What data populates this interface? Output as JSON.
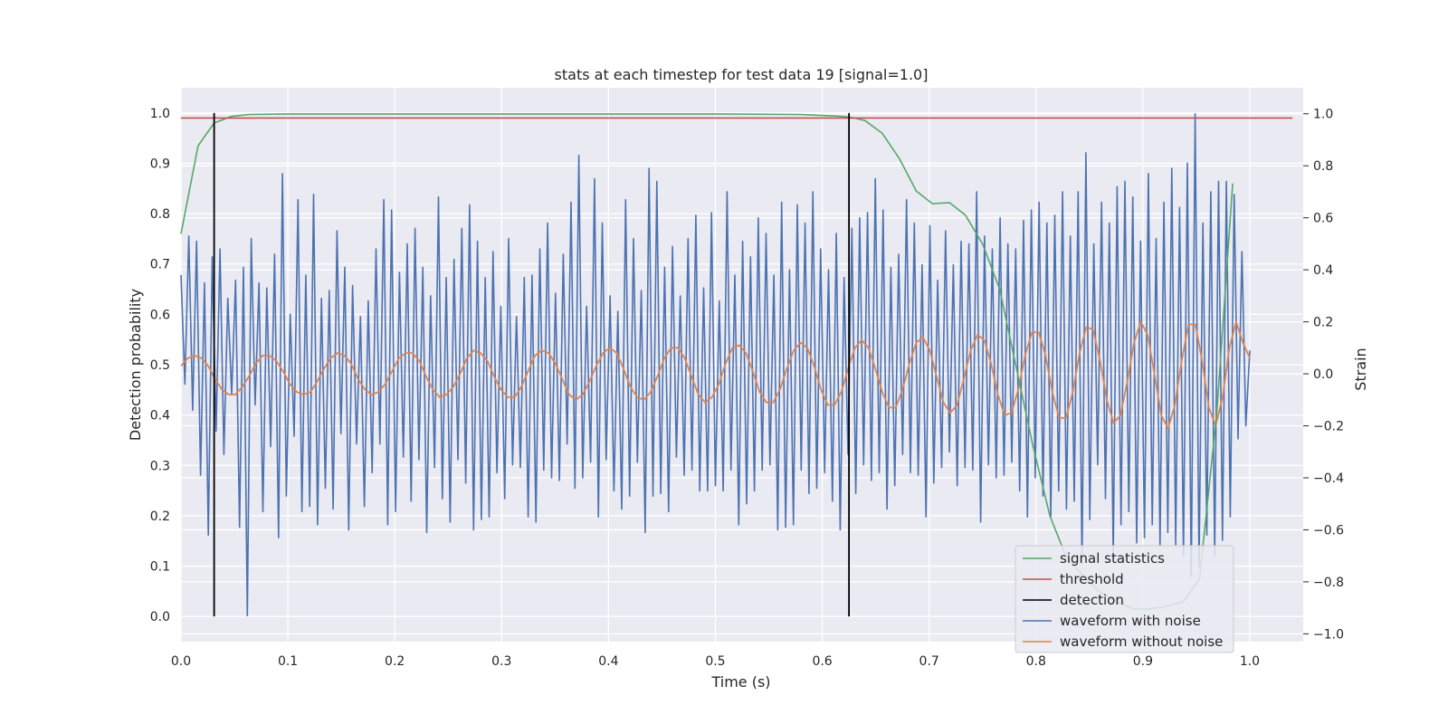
{
  "chart_data": {
    "type": "line",
    "title": "stats at each timestep for test data 19 [signal=1.0]",
    "xlabel": "Time (s)",
    "ylabel": "Detection probability",
    "y2label": "Strain",
    "xlim": [
      0.0,
      1.05
    ],
    "ylim": [
      -0.05,
      1.05
    ],
    "y2lim": [
      -1.03,
      1.1
    ],
    "xticks": [
      "0.0",
      "0.1",
      "0.2",
      "0.3",
      "0.4",
      "0.5",
      "0.6",
      "0.7",
      "0.8",
      "0.9",
      "1.0"
    ],
    "yticks": [
      "0.0",
      "0.1",
      "0.2",
      "0.3",
      "0.4",
      "0.5",
      "0.6",
      "0.7",
      "0.8",
      "0.9",
      "1.0"
    ],
    "y2ticks": [
      "−1.0",
      "−0.8",
      "−0.6",
      "−0.4",
      "−0.2",
      "0.0",
      "0.2",
      "0.4",
      "0.6",
      "0.8",
      "1.0"
    ],
    "grid": true,
    "legend_position": "lower-right",
    "colors": {
      "background": "#eaeaf2",
      "grid": "#ffffff",
      "signal": "#55a868",
      "threshold": "#c44e52",
      "detection": "#000000",
      "noisy": "#4c72b0",
      "clean": "#dd8452"
    },
    "series": [
      {
        "name": "signal statistics",
        "axis": "left",
        "x": [
          0.0,
          0.016,
          0.031,
          0.047,
          0.063,
          0.1,
          0.2,
          0.3,
          0.4,
          0.5,
          0.58,
          0.62,
          0.63,
          0.64,
          0.656,
          0.672,
          0.688,
          0.703,
          0.719,
          0.734,
          0.75,
          0.766,
          0.781,
          0.797,
          0.813,
          0.828,
          0.844,
          0.859,
          0.875,
          0.891,
          0.906,
          0.922,
          0.938,
          0.953,
          0.969,
          0.984
        ],
        "values": [
          0.76,
          0.935,
          0.98,
          0.993,
          0.997,
          0.998,
          0.998,
          0.998,
          0.998,
          0.998,
          0.997,
          0.993,
          0.99,
          0.985,
          0.96,
          0.91,
          0.845,
          0.82,
          0.822,
          0.797,
          0.74,
          0.65,
          0.5,
          0.34,
          0.2,
          0.12,
          0.08,
          0.05,
          0.03,
          0.015,
          0.015,
          0.02,
          0.03,
          0.075,
          0.4,
          0.86
        ]
      },
      {
        "name": "threshold",
        "axis": "left",
        "x": [
          0.0,
          1.04
        ],
        "values": [
          0.99,
          0.99
        ]
      },
      {
        "name": "detection",
        "axis": "left",
        "segments": [
          {
            "x": 0.031,
            "from": 0.0,
            "to": 1.0
          },
          {
            "x": 0.625,
            "from": 0.0,
            "to": 1.0
          }
        ]
      },
      {
        "name": "waveform with noise",
        "axis": "right",
        "x_range": [
          0.0,
          1.0
        ],
        "values": [
          0.38,
          -0.04,
          0.53,
          -0.14,
          0.51,
          -0.39,
          0.35,
          -0.62,
          0.45,
          -0.22,
          0.48,
          -0.31,
          0.29,
          -0.08,
          0.36,
          -0.59,
          0.41,
          -0.93,
          0.52,
          -0.12,
          0.35,
          -0.53,
          0.33,
          -0.28,
          0.46,
          -0.63,
          0.77,
          -0.47,
          0.23,
          -0.24,
          0.67,
          -0.53,
          0.38,
          -0.51,
          0.69,
          -0.58,
          0.29,
          -0.44,
          0.32,
          -0.52,
          0.55,
          -0.23,
          0.41,
          -0.6,
          0.34,
          -0.27,
          0.22,
          -0.51,
          0.28,
          -0.38,
          0.48,
          -0.27,
          0.67,
          -0.58,
          0.63,
          -0.53,
          0.39,
          -0.32,
          0.5,
          -0.49,
          0.56,
          -0.33,
          0.41,
          -0.61,
          0.3,
          -0.36,
          0.68,
          -0.48,
          0.37,
          -0.57,
          0.44,
          -0.33,
          0.56,
          -0.42,
          0.65,
          -0.6,
          0.51,
          -0.56,
          0.37,
          -0.55,
          0.47,
          -0.38,
          0.26,
          -0.48,
          0.52,
          -0.35,
          0.22,
          -0.36,
          0.37,
          -0.55,
          0.38,
          -0.57,
          0.48,
          -0.37,
          0.58,
          -0.4,
          0.31,
          -0.41,
          0.46,
          -0.27,
          0.66,
          -0.44,
          0.84,
          -0.4,
          0.26,
          -0.34,
          0.75,
          -0.55,
          0.58,
          -0.33,
          0.3,
          -0.45,
          0.24,
          -0.52,
          0.67,
          -0.47,
          0.52,
          -0.34,
          0.32,
          -0.61,
          0.79,
          -0.47,
          0.74,
          -0.46,
          0.41,
          -0.53,
          0.49,
          -0.32,
          0.3,
          -0.39,
          0.52,
          -0.37,
          0.61,
          -0.45,
          0.33,
          -0.45,
          0.62,
          -0.43,
          0.28,
          -0.45,
          0.7,
          -0.37,
          0.38,
          -0.58,
          0.51,
          -0.5,
          0.45,
          -0.45,
          0.6,
          -0.37,
          0.54,
          -0.35,
          0.38,
          -0.6,
          0.66,
          -0.59,
          0.4,
          -0.58,
          0.65,
          -0.37,
          0.58,
          -0.46,
          0.7,
          -0.44,
          0.48,
          -0.38,
          0.4,
          -0.49,
          0.54,
          -0.6,
          0.37,
          -0.31,
          0.56,
          -0.46,
          0.6,
          -0.35,
          0.62,
          -0.41,
          0.75,
          -0.38,
          0.63,
          -0.52,
          0.41,
          -0.43,
          0.46,
          -0.31,
          0.67,
          -0.38,
          0.58,
          -0.39,
          0.42,
          -0.55,
          0.57,
          -0.42,
          0.36,
          -0.36,
          0.55,
          -0.3,
          0.42,
          -0.43,
          0.51,
          -0.36,
          0.5,
          -0.37,
          0.7,
          -0.57,
          0.53,
          -0.35,
          0.48,
          -0.4,
          0.6,
          -0.39,
          0.5,
          -0.34,
          0.48,
          -0.45,
          0.59,
          -0.55,
          0.63,
          -0.4,
          0.66,
          -0.47,
          0.58,
          -0.55,
          0.61,
          -0.45,
          0.7,
          -0.52,
          0.53,
          -0.49,
          0.7,
          -0.73,
          0.85,
          -0.56,
          0.5,
          -0.35,
          0.66,
          -0.48,
          0.58,
          -0.7,
          0.72,
          -0.58,
          0.74,
          -0.53,
          0.68,
          -0.65,
          0.51,
          -0.63,
          0.77,
          -0.58,
          0.52,
          -0.66,
          0.66,
          -0.61,
          0.79,
          -0.66,
          0.64,
          -0.7,
          0.81,
          -0.78,
          1.0,
          -0.74,
          0.58,
          -0.62,
          0.7,
          -0.7,
          0.74,
          -0.64,
          0.74,
          -0.55,
          0.69,
          -0.25,
          0.47,
          -0.2,
          0.09
        ]
      },
      {
        "name": "waveform without noise",
        "axis": "right",
        "x_range": [
          0.0,
          1.0
        ],
        "values": [
          0.03,
          0.06,
          0.07,
          0.06,
          0.03,
          -0.02,
          -0.06,
          -0.08,
          -0.08,
          -0.05,
          -0.01,
          0.04,
          0.07,
          0.07,
          0.05,
          0.01,
          -0.04,
          -0.07,
          -0.08,
          -0.07,
          -0.03,
          0.02,
          0.06,
          0.08,
          0.07,
          0.04,
          -0.02,
          -0.06,
          -0.08,
          -0.07,
          -0.04,
          0.01,
          0.06,
          0.08,
          0.08,
          0.05,
          -0.01,
          -0.06,
          -0.09,
          -0.08,
          -0.05,
          0.0,
          0.06,
          0.09,
          0.08,
          0.05,
          -0.01,
          -0.06,
          -0.09,
          -0.09,
          -0.05,
          0.01,
          0.07,
          0.09,
          0.08,
          0.04,
          -0.02,
          -0.08,
          -0.1,
          -0.08,
          -0.03,
          0.03,
          0.08,
          0.1,
          0.08,
          0.02,
          -0.05,
          -0.09,
          -0.1,
          -0.07,
          -0.01,
          0.06,
          0.1,
          0.1,
          0.06,
          -0.01,
          -0.08,
          -0.11,
          -0.09,
          -0.04,
          0.04,
          0.1,
          0.11,
          0.08,
          0.01,
          -0.07,
          -0.11,
          -0.11,
          -0.06,
          0.02,
          0.09,
          0.12,
          0.1,
          0.03,
          -0.06,
          -0.12,
          -0.12,
          -0.07,
          0.02,
          0.1,
          0.13,
          0.1,
          0.02,
          -0.07,
          -0.13,
          -0.13,
          -0.06,
          0.04,
          0.12,
          0.14,
          0.09,
          -0.01,
          -0.11,
          -0.15,
          -0.12,
          -0.02,
          0.09,
          0.15,
          0.13,
          0.04,
          -0.08,
          -0.16,
          -0.15,
          -0.06,
          0.07,
          0.16,
          0.16,
          0.07,
          -0.07,
          -0.17,
          -0.17,
          -0.07,
          0.08,
          0.18,
          0.17,
          0.05,
          -0.1,
          -0.19,
          -0.16,
          -0.03,
          0.12,
          0.2,
          0.15,
          0.0,
          -0.16,
          -0.21,
          -0.12,
          0.05,
          0.19,
          0.19,
          0.05,
          -0.13,
          -0.2,
          -0.09,
          0.1,
          0.2,
          0.12,
          0.06
        ]
      }
    ]
  }
}
